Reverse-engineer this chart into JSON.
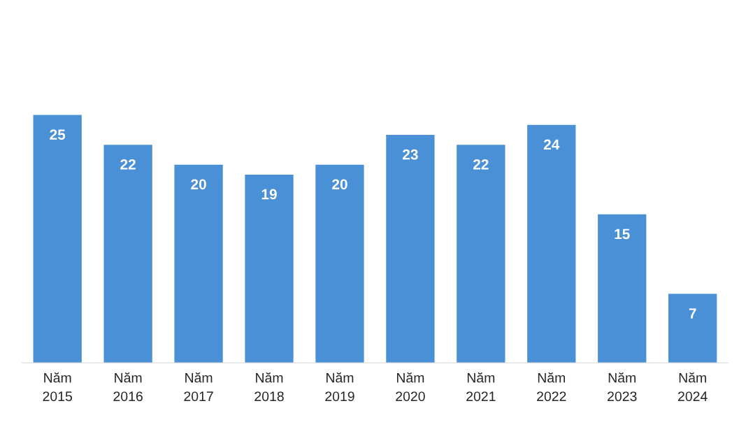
{
  "chart_data": {
    "type": "bar",
    "categories": [
      "Năm 2015",
      "Năm 2016",
      "Năm 2017",
      "Năm 2018",
      "Năm 2019",
      "Năm 2020",
      "Năm 2021",
      "Năm 2022",
      "Năm 2023",
      "Năm 2024"
    ],
    "values": [
      25,
      22,
      20,
      19,
      20,
      23,
      22,
      24,
      15,
      7
    ],
    "color": "#4a90d6",
    "data_labels": true,
    "tick_labels": "x"
  }
}
